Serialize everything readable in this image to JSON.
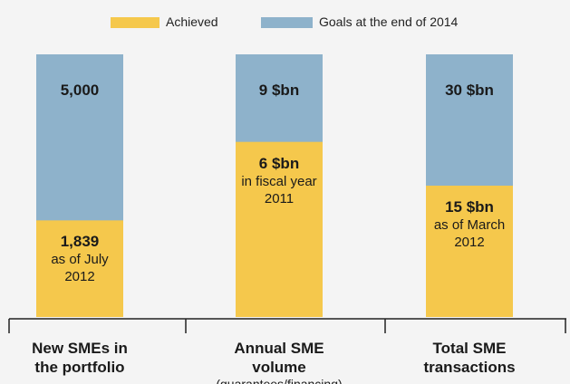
{
  "chart_data": {
    "type": "bar",
    "categories": [
      {
        "label": "New SMEs in the portfolio"
      },
      {
        "label": "Annual SME volume",
        "note": "(guarantees/financing)"
      },
      {
        "label": "Total SME transactions"
      }
    ],
    "series": [
      {
        "name": "Achieved",
        "color": "#f5c84c",
        "values": [
          1839,
          6,
          15
        ],
        "value_labels": [
          "1,839",
          "6 $bn",
          "15 $bn"
        ],
        "notes": [
          "as of July 2012",
          "in fiscal year 2011",
          "as of March 2012"
        ]
      },
      {
        "name": "Goals at the end of 2014",
        "color": "#8eb2cb",
        "values": [
          5000,
          9,
          30
        ],
        "value_labels": [
          "5,000",
          "9 $bn",
          "30 $bn"
        ]
      }
    ]
  }
}
